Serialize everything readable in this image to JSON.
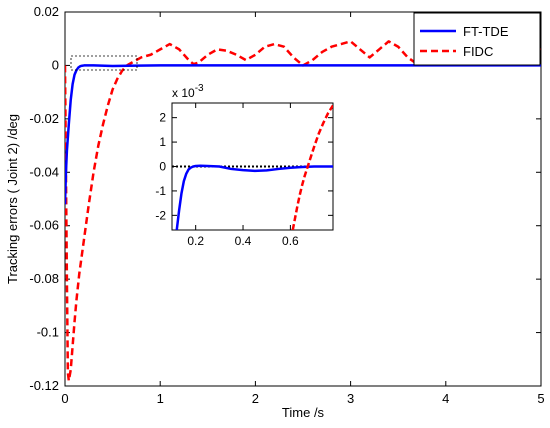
{
  "chart_data": {
    "type": "line",
    "xlabel": "Time /s",
    "ylabel": "Tracking errors (   Joint 2)  /deg",
    "xlim": [
      0,
      5
    ],
    "ylim": [
      -0.12,
      0.02
    ],
    "xticks": [
      "0",
      "1",
      "2",
      "3",
      "4",
      "5"
    ],
    "yticks": [
      "0.02",
      "0",
      "-0.02",
      "-0.04",
      "-0.06",
      "-0.08",
      "-0.1",
      "-0.12"
    ],
    "legend_position": "top-right",
    "colors": {
      "FT-TDE": "#0000ff",
      "FIDC": "#ff0000",
      "reference": "#000000"
    },
    "series": [
      {
        "name": "FT-TDE",
        "x": [
          0,
          0.01,
          0.02,
          0.04,
          0.06,
          0.08,
          0.1,
          0.12,
          0.14,
          0.16,
          0.18,
          0.2,
          0.3,
          0.5,
          1.0,
          2.0,
          3.0,
          4.0,
          5.0
        ],
        "values": [
          -0.052,
          -0.04,
          -0.032,
          -0.022,
          -0.013,
          -0.007,
          -0.0035,
          -0.0018,
          -0.0008,
          -0.0003,
          -0.0001,
          0,
          0,
          -0.0002,
          0,
          0,
          0,
          0,
          0
        ]
      },
      {
        "name": "FIDC",
        "x": [
          0,
          0.02,
          0.03,
          0.04,
          0.06,
          0.08,
          0.1,
          0.12,
          0.15,
          0.2,
          0.25,
          0.3,
          0.35,
          0.4,
          0.45,
          0.5,
          0.55,
          0.6,
          0.65,
          0.7,
          0.75,
          0.8,
          0.9,
          1.0,
          1.1,
          1.2,
          1.3,
          1.35,
          1.4,
          1.5,
          1.6,
          1.7,
          1.8,
          1.9,
          2.0,
          2.1,
          2.2,
          2.3,
          2.4,
          2.5,
          2.6,
          2.7,
          2.8,
          2.9,
          3.0,
          3.1,
          3.2,
          3.3,
          3.4,
          3.5,
          3.6,
          3.7,
          3.8,
          3.9,
          4.0,
          4.1,
          4.2,
          4.3,
          4.4,
          4.5,
          4.6,
          4.7,
          4.8,
          4.9,
          5.0
        ],
        "values": [
          0,
          -0.08,
          -0.115,
          -0.118,
          -0.114,
          -0.105,
          -0.096,
          -0.088,
          -0.078,
          -0.065,
          -0.052,
          -0.04,
          -0.03,
          -0.022,
          -0.015,
          -0.009,
          -0.005,
          -0.002,
          0,
          0.001,
          0.002,
          0.003,
          0.004,
          0.006,
          0.008,
          0.006,
          0.002,
          0.0005,
          0.001,
          0.004,
          0.006,
          0.0055,
          0.004,
          0.002,
          0.004,
          0.007,
          0.008,
          0.007,
          0.003,
          0,
          0.002,
          0.005,
          0.007,
          0.008,
          0.009,
          0.006,
          0.003,
          0.006,
          0.009,
          0.007,
          0.003,
          0.0005,
          0.002,
          0.004,
          0.0045,
          0.002,
          0,
          0.001,
          0.003,
          0.005,
          0.006,
          0.005,
          0.004,
          0.005,
          0.006
        ]
      }
    ],
    "inset": {
      "exponent_label": "x 10",
      "exponent_power": "-3",
      "xlim": [
        0.1,
        0.78
      ],
      "ylim": [
        -2.6,
        2.6
      ],
      "xticks": [
        "0.2",
        "0.4",
        "0.6"
      ],
      "yticks": [
        "2",
        "1",
        "0",
        "-1",
        "-2"
      ],
      "reference_line": 0,
      "series": [
        {
          "name": "FT-TDE",
          "x": [
            0.12,
            0.13,
            0.14,
            0.15,
            0.16,
            0.17,
            0.18,
            0.19,
            0.2,
            0.22,
            0.25,
            0.3,
            0.35,
            0.4,
            0.45,
            0.5,
            0.55,
            0.6,
            0.65,
            0.7,
            0.78
          ],
          "values": [
            -2.6,
            -1.8,
            -1.1,
            -0.6,
            -0.3,
            -0.12,
            -0.04,
            0,
            0.02,
            0.03,
            0.02,
            0,
            -0.1,
            -0.15,
            -0.18,
            -0.16,
            -0.1,
            -0.05,
            -0.02,
            0,
            0
          ]
        },
        {
          "name": "FIDC",
          "x": [
            0.61,
            0.62,
            0.63,
            0.64,
            0.65,
            0.66,
            0.67,
            0.68,
            0.7,
            0.72,
            0.74,
            0.76,
            0.78
          ],
          "values": [
            -2.6,
            -2.1,
            -1.6,
            -1.15,
            -0.75,
            -0.4,
            -0.1,
            0.2,
            0.8,
            1.35,
            1.8,
            2.2,
            2.5
          ]
        }
      ]
    }
  }
}
